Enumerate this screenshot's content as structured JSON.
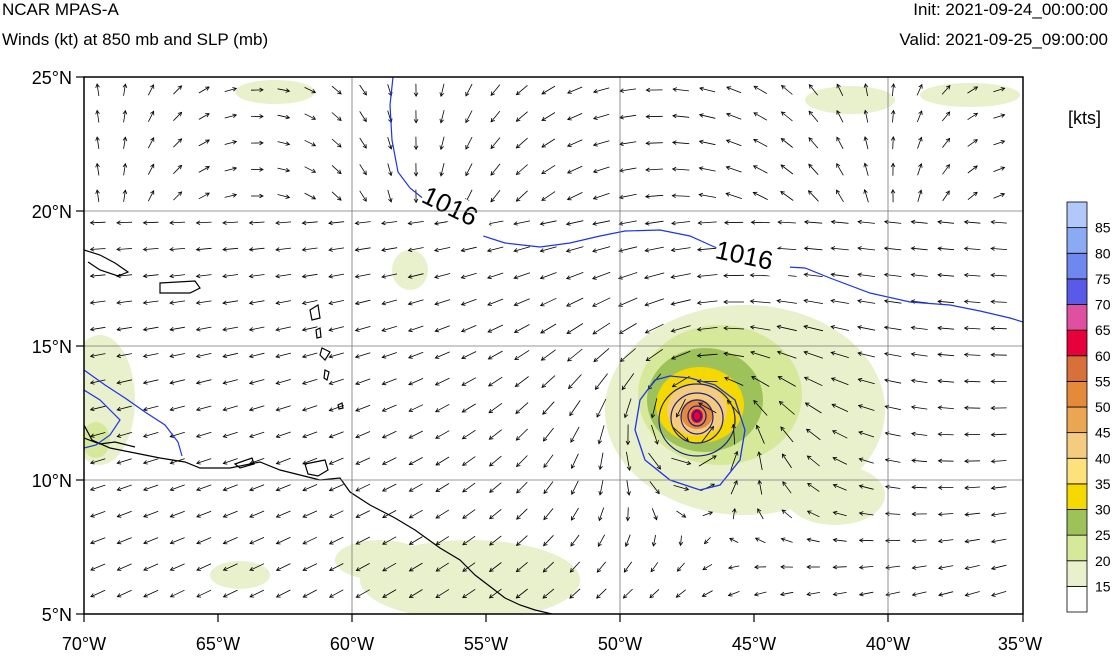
{
  "header": {
    "model": "NCAR MPAS-A",
    "field": "Winds (kt) at 850 mb and SLP (mb)",
    "init": "Init: 2021-09-24_00:00:00",
    "valid": "Valid: 2021-09-25_09:00:00"
  },
  "map": {
    "lon_range": [
      -70,
      -35
    ],
    "lat_range": [
      5,
      25
    ],
    "lon_ticks": [
      "70°W",
      "65°W",
      "60°W",
      "55°W",
      "50°W",
      "45°W",
      "40°W",
      "35°W"
    ],
    "lat_ticks": [
      "25°N",
      "20°N",
      "15°N",
      "10°N",
      "5°N"
    ],
    "grid": true,
    "storm_center": {
      "lon": -47.3,
      "lat": 12.3
    },
    "contour_labels": [
      "1016",
      "1016"
    ]
  },
  "colorbar": {
    "unit": "[kts]",
    "levels": [
      "15",
      "20",
      "25",
      "30",
      "35",
      "40",
      "45",
      "50",
      "55",
      "60",
      "65",
      "70",
      "75",
      "80",
      "85"
    ],
    "colors": [
      "#ffffff",
      "#e8f0cc",
      "#d6e89a",
      "#9dc25a",
      "#f5d800",
      "#fbe27a",
      "#f4cc80",
      "#eba654",
      "#e48a3a",
      "#d8703a",
      "#e8003c",
      "#e050a0",
      "#5a5ae8",
      "#6e88f0",
      "#8aaaf4",
      "#b0c8fa"
    ]
  }
}
